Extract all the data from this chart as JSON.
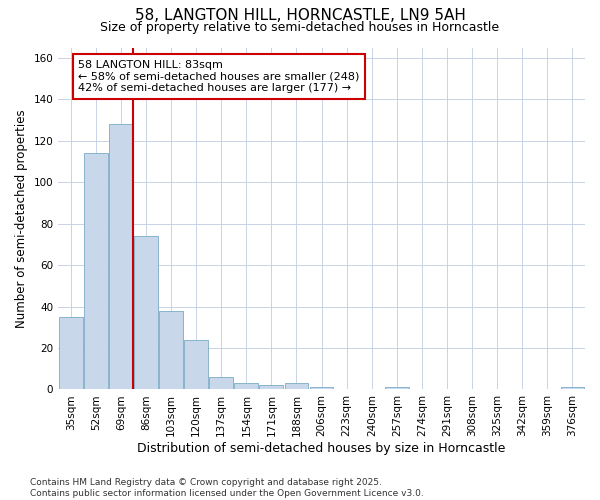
{
  "title_line1": "58, LANGTON HILL, HORNCASTLE, LN9 5AH",
  "title_line2": "Size of property relative to semi-detached houses in Horncastle",
  "xlabel": "Distribution of semi-detached houses by size in Horncastle",
  "ylabel": "Number of semi-detached properties",
  "categories": [
    "35sqm",
    "52sqm",
    "69sqm",
    "86sqm",
    "103sqm",
    "120sqm",
    "137sqm",
    "154sqm",
    "171sqm",
    "188sqm",
    "206sqm",
    "223sqm",
    "240sqm",
    "257sqm",
    "274sqm",
    "291sqm",
    "308sqm",
    "325sqm",
    "342sqm",
    "359sqm",
    "376sqm"
  ],
  "values": [
    35,
    114,
    128,
    74,
    38,
    24,
    6,
    3,
    2,
    3,
    1,
    0,
    0,
    1,
    0,
    0,
    0,
    0,
    0,
    0,
    1
  ],
  "bar_color": "#c8d8ea",
  "bar_edge_color": "#7aaac8",
  "grid_color": "#c8d4e4",
  "bg_color": "#ffffff",
  "property_line_x": 3.0,
  "annotation_box_text": "58 LANGTON HILL: 83sqm\n← 58% of semi-detached houses are smaller (248)\n42% of semi-detached houses are larger (177) →",
  "annotation_box_color": "#cc0000",
  "ylim": [
    0,
    165
  ],
  "yticks": [
    0,
    20,
    40,
    60,
    80,
    100,
    120,
    140,
    160
  ],
  "footnote": "Contains HM Land Registry data © Crown copyright and database right 2025.\nContains public sector information licensed under the Open Government Licence v3.0.",
  "title_fontsize": 11,
  "subtitle_fontsize": 9,
  "annotation_fontsize": 8,
  "ylabel_fontsize": 8.5,
  "xlabel_fontsize": 9,
  "tick_fontsize": 7.5,
  "footnote_fontsize": 6.5
}
